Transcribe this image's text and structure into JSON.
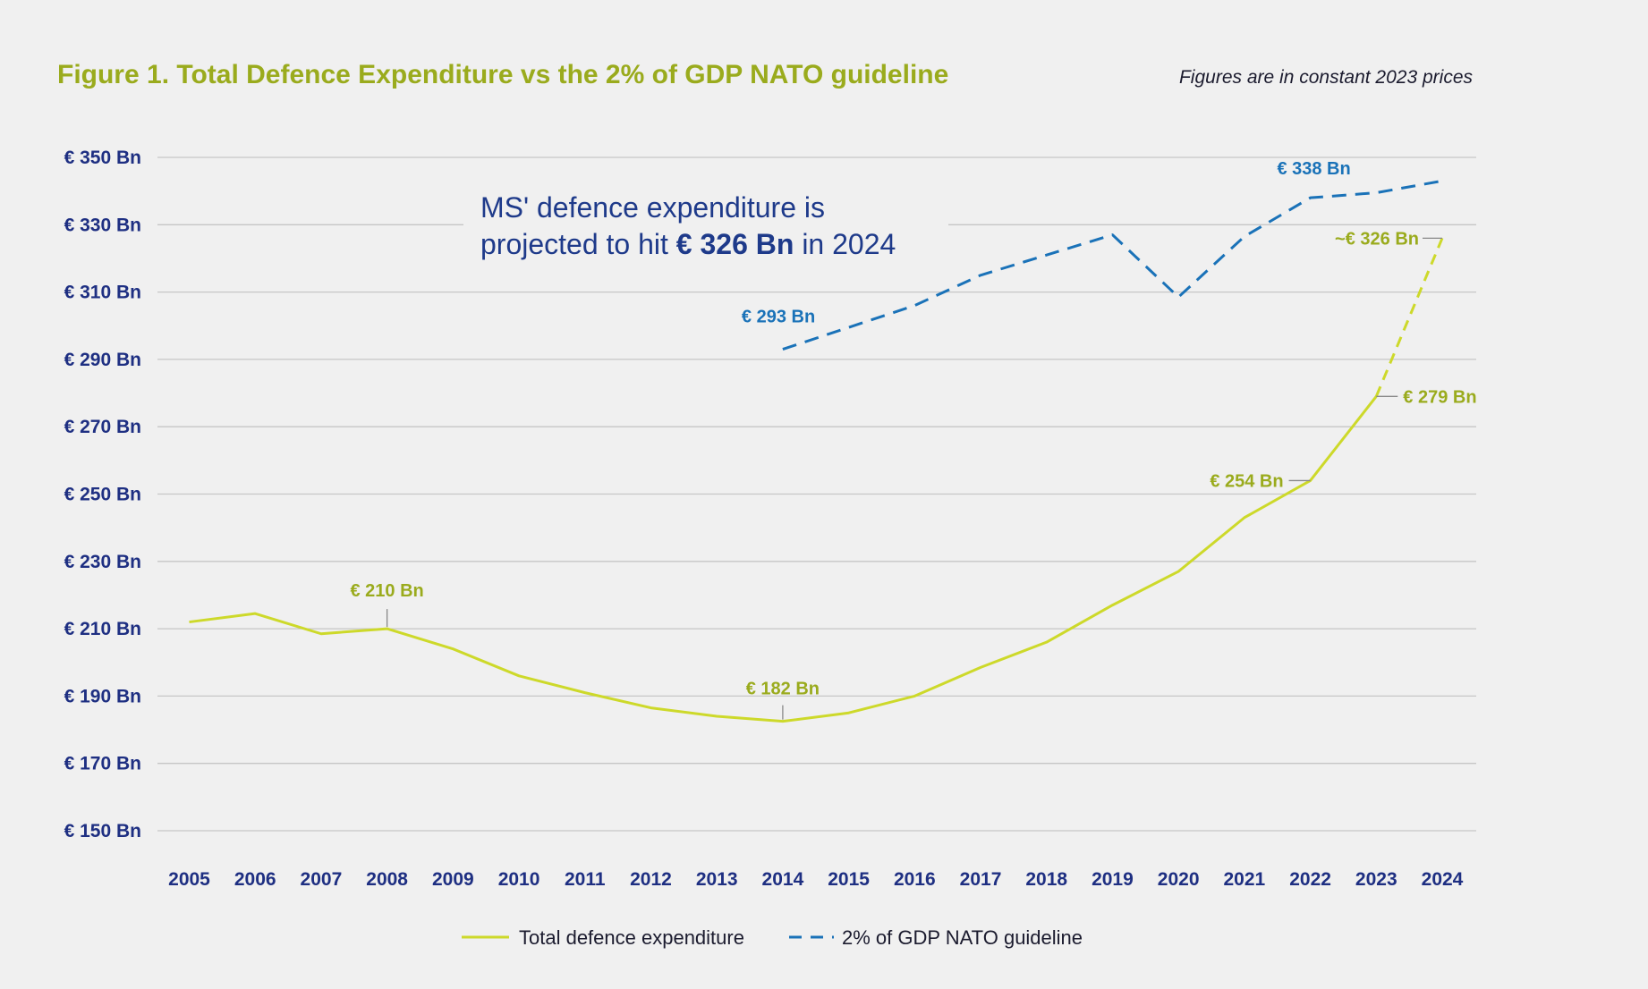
{
  "colors": {
    "background": "#f0f0f0",
    "title": "#9aab1d",
    "axis_text": "#1e2f82",
    "total_line": "#cdd92a",
    "total_label": "#9aab1d",
    "nato_line": "#1a72b8",
    "nato_label": "#1a72b8",
    "annotation": "#1e3a8a",
    "grid": "#c6c6c6"
  },
  "chart_data": {
    "type": "line",
    "title": "Figure 1. Total Defence Expenditure vs the 2% of GDP NATO guideline",
    "subtitle": "Figures are in constant 2023 prices",
    "xlabel": "",
    "ylabel": "",
    "ylim": [
      150,
      350
    ],
    "y_ticks": [
      350,
      330,
      310,
      290,
      270,
      250,
      230,
      210,
      190,
      170,
      150
    ],
    "y_tick_labels": [
      "€ 350 Bn",
      "€ 330 Bn",
      "€ 310 Bn",
      "€ 290 Bn",
      "€ 270 Bn",
      "€ 250 Bn",
      "€ 230 Bn",
      "€ 210 Bn",
      "€ 190 Bn",
      "€ 170 Bn",
      "€ 150 Bn"
    ],
    "grid": true,
    "legend_position": "bottom-center",
    "x": [
      "2005",
      "2006",
      "2007",
      "2008",
      "2009",
      "2010",
      "2011",
      "2012",
      "2013",
      "2014",
      "2015",
      "2016",
      "2017",
      "2018",
      "2019",
      "2020",
      "2021",
      "2022",
      "2023",
      "2024"
    ],
    "series": [
      {
        "name": "Total defence expenditure",
        "style": "solid",
        "projected_last_segment": true,
        "values": [
          212,
          214.5,
          208.5,
          210,
          204,
          196,
          191,
          186.5,
          184,
          182.5,
          185,
          190,
          198.5,
          206,
          217,
          227,
          243,
          254,
          279,
          326
        ]
      },
      {
        "name": "2% of GDP NATO guideline",
        "style": "dashed",
        "x": [
          "2014",
          "2015",
          "2016",
          "2017",
          "2018",
          "2019",
          "2020",
          "2021",
          "2022",
          "2023",
          "2024"
        ],
        "values": [
          293,
          299.5,
          306,
          315,
          321,
          327,
          308.5,
          326.5,
          338,
          339.5,
          343
        ]
      }
    ],
    "annotation": {
      "line1": "MS' defence expenditure is",
      "line2_prefix": "projected to hit ",
      "line2_bold": "€ 326 Bn",
      "line2_suffix": " in 2024"
    },
    "data_labels": [
      {
        "series": 0,
        "year": "2008",
        "text": "€ 210 Bn"
      },
      {
        "series": 0,
        "year": "2014",
        "text": "€ 182 Bn"
      },
      {
        "series": 0,
        "year": "2022",
        "text": "€ 254 Bn"
      },
      {
        "series": 0,
        "year": "2023",
        "text": "€ 279 Bn"
      },
      {
        "series": 0,
        "year": "2024",
        "text": "~€ 326 Bn"
      },
      {
        "series": 1,
        "year": "2014",
        "text": "€ 293 Bn"
      },
      {
        "series": 1,
        "year": "2022",
        "text": "€ 338 Bn"
      }
    ]
  }
}
